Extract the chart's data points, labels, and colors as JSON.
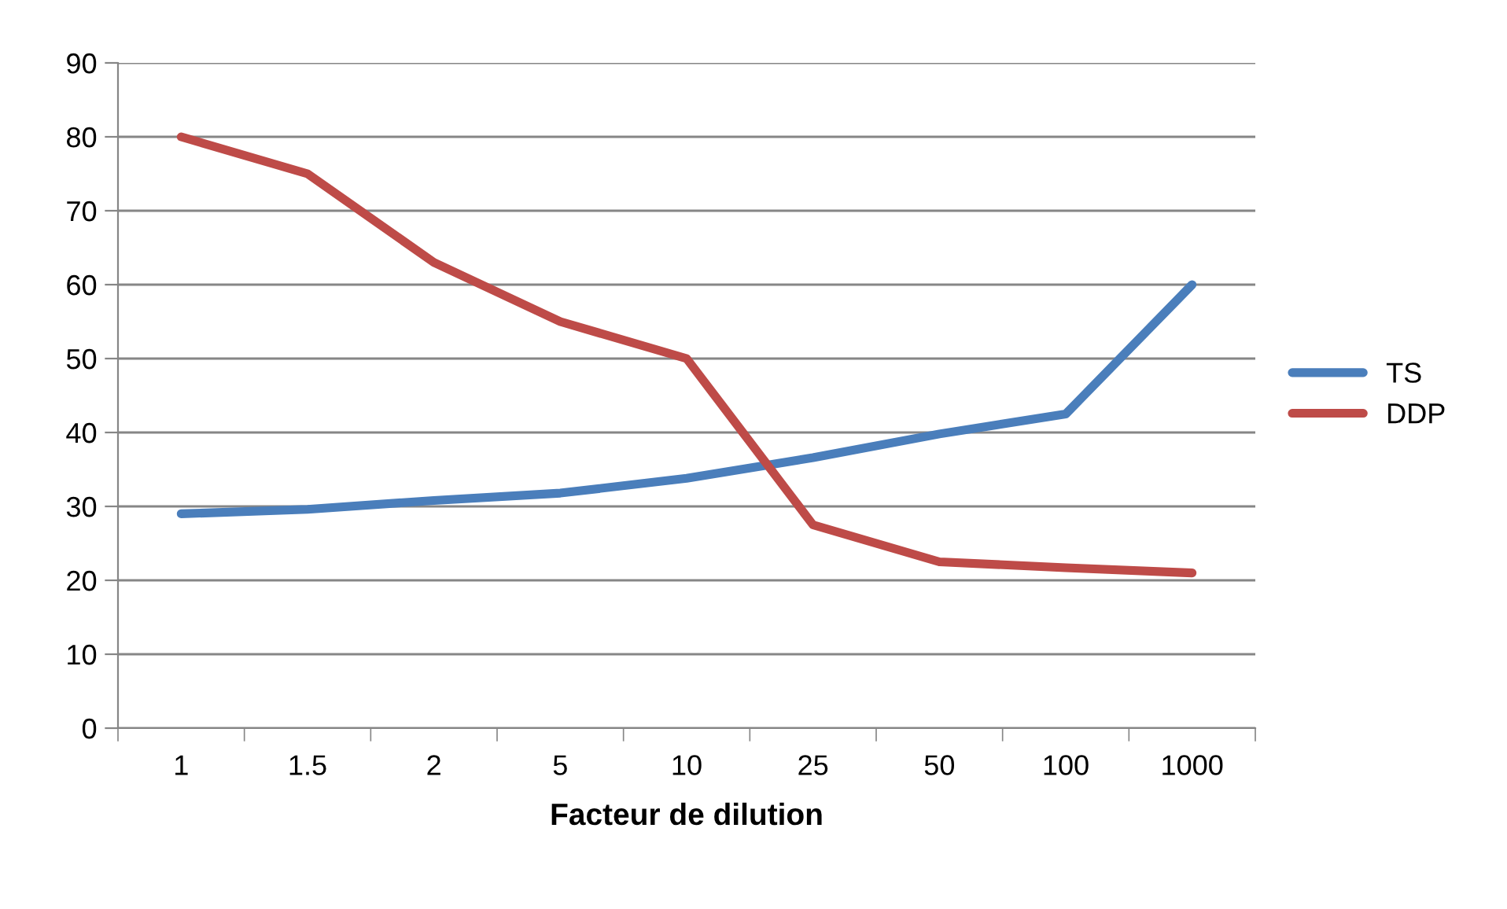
{
  "chart_data": {
    "type": "line",
    "xlabel": "Facteur de dilution",
    "categories": [
      "1",
      "1.5",
      "2",
      "5",
      "10",
      "25",
      "50",
      "100",
      "1000"
    ],
    "series": [
      {
        "name": "TS",
        "color": "#4a7ebb",
        "values": [
          29,
          29.6,
          30.8,
          31.8,
          33.8,
          36.6,
          39.8,
          42.5,
          60
        ]
      },
      {
        "name": "DDP",
        "color": "#be4b48",
        "values": [
          80,
          75,
          63,
          55,
          50,
          27.5,
          22.5,
          21.7,
          21
        ]
      }
    ],
    "ylim": [
      0,
      90
    ],
    "yticks": [
      0,
      10,
      20,
      30,
      40,
      50,
      60,
      70,
      80,
      90
    ],
    "grid": "y",
    "legend": "right",
    "marker": "none",
    "line_style": "solid"
  }
}
